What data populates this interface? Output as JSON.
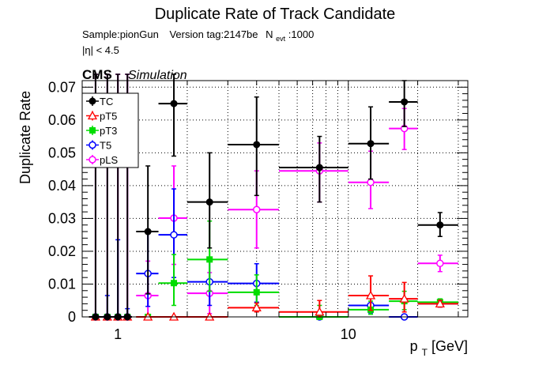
{
  "chart_data": {
    "type": "scatter",
    "title": "Duplicate Rate of Track Candidate",
    "subtitle_sample": "Sample:pionGun",
    "subtitle_version": "Version tag:2147be",
    "subtitle_nevt_prefix": "N",
    "subtitle_nevt_sub": "evt",
    "subtitle_nevt_value": ":1000",
    "eta_cut": "|η| < 4.5",
    "cms_label": "CMS",
    "sim_label": "Simulation",
    "xlabel_main": "p",
    "xlabel_sub": "T",
    "xlabel_unit": " [GeV]",
    "ylabel": "Duplicate Rate",
    "x_scale": "log",
    "xlim": [
      0.7,
      33
    ],
    "ylim": [
      0,
      0.072
    ],
    "grid": true,
    "legend_position": "top-left",
    "x_ticks": [
      {
        "v": 1,
        "label": "1"
      },
      {
        "v": 10,
        "label": "10"
      }
    ],
    "y_ticks": [
      {
        "v": 0,
        "label": "0"
      },
      {
        "v": 0.01,
        "label": "0.01"
      },
      {
        "v": 0.02,
        "label": "0.02"
      },
      {
        "v": 0.03,
        "label": "0.03"
      },
      {
        "v": 0.04,
        "label": "0.04"
      },
      {
        "v": 0.05,
        "label": "0.05"
      },
      {
        "v": 0.06,
        "label": "0.06"
      },
      {
        "v": 0.07,
        "label": "0.07"
      }
    ],
    "series": [
      {
        "name": "TC",
        "color": "#000000",
        "marker": "filled-circle",
        "points": [
          {
            "x": 0.8,
            "xlo": 0.75,
            "xhi": 0.85,
            "y": 0,
            "ylo": 0,
            "yhi": 0.075
          },
          {
            "x": 0.9,
            "xlo": 0.85,
            "xhi": 0.95,
            "y": 0,
            "ylo": 0,
            "yhi": 0.075
          },
          {
            "x": 1.0,
            "xlo": 0.95,
            "xhi": 1.05,
            "y": 0,
            "ylo": 0,
            "yhi": 0.075
          },
          {
            "x": 1.1,
            "xlo": 1.05,
            "xhi": 1.15,
            "y": 0,
            "ylo": 0,
            "yhi": 0.075
          },
          {
            "x": 1.35,
            "xlo": 1.2,
            "xhi": 1.5,
            "y": 0.026,
            "ylo": 0.007,
            "yhi": 0.046
          },
          {
            "x": 1.75,
            "xlo": 1.5,
            "xhi": 2.0,
            "y": 0.065,
            "ylo": 0.049,
            "yhi": 0.075
          },
          {
            "x": 2.5,
            "xlo": 2.0,
            "xhi": 3.0,
            "y": 0.035,
            "ylo": 0.021,
            "yhi": 0.05
          },
          {
            "x": 4.0,
            "xlo": 3.0,
            "xhi": 5.0,
            "y": 0.0525,
            "ylo": 0.037,
            "yhi": 0.067
          },
          {
            "x": 7.5,
            "xlo": 5.0,
            "xhi": 10.0,
            "y": 0.0455,
            "ylo": 0.035,
            "yhi": 0.055
          },
          {
            "x": 12.5,
            "xlo": 10.0,
            "xhi": 15.0,
            "y": 0.0528,
            "ylo": 0.042,
            "yhi": 0.064
          },
          {
            "x": 17.5,
            "xlo": 15.0,
            "xhi": 20.0,
            "y": 0.0655,
            "ylo": 0.058,
            "yhi": 0.072
          },
          {
            "x": 25.0,
            "xlo": 20.0,
            "xhi": 30.0,
            "y": 0.028,
            "ylo": 0.0245,
            "yhi": 0.0318
          }
        ]
      },
      {
        "name": "pT5",
        "color": "#ff0000",
        "marker": "open-triangle",
        "points": [
          {
            "x": 0.8,
            "xlo": 0.75,
            "xhi": 0.85,
            "y": 0,
            "ylo": 0,
            "yhi": 0
          },
          {
            "x": 0.9,
            "xlo": 0.85,
            "xhi": 0.95,
            "y": 0,
            "ylo": 0,
            "yhi": 0
          },
          {
            "x": 1.0,
            "xlo": 0.95,
            "xhi": 1.05,
            "y": 0,
            "ylo": 0,
            "yhi": 0
          },
          {
            "x": 1.1,
            "xlo": 1.05,
            "xhi": 1.15,
            "y": 0,
            "ylo": 0,
            "yhi": 0
          },
          {
            "x": 1.35,
            "xlo": 1.2,
            "xhi": 1.5,
            "y": 0,
            "ylo": 0,
            "yhi": 0
          },
          {
            "x": 1.75,
            "xlo": 1.5,
            "xhi": 2.0,
            "y": 0,
            "ylo": 0,
            "yhi": 0
          },
          {
            "x": 2.5,
            "xlo": 2.0,
            "xhi": 3.0,
            "y": 0,
            "ylo": 0,
            "yhi": 0
          },
          {
            "x": 4.0,
            "xlo": 3.0,
            "xhi": 5.0,
            "y": 0.0028,
            "ylo": 0.0015,
            "yhi": 0.0042
          },
          {
            "x": 7.5,
            "xlo": 5.0,
            "xhi": 10.0,
            "y": 0.0015,
            "ylo": 0,
            "yhi": 0.005
          },
          {
            "x": 12.5,
            "xlo": 10.0,
            "xhi": 15.0,
            "y": 0.0065,
            "ylo": 0.002,
            "yhi": 0.0125
          },
          {
            "x": 17.5,
            "xlo": 15.0,
            "xhi": 20.0,
            "y": 0.0055,
            "ylo": 0.0015,
            "yhi": 0.0105
          },
          {
            "x": 25.0,
            "xlo": 20.0,
            "xhi": 30.0,
            "y": 0.004,
            "ylo": 0.003,
            "yhi": 0.005
          }
        ]
      },
      {
        "name": "pT3",
        "color": "#00dd00",
        "marker": "filled-square",
        "points": [
          {
            "x": 0.8,
            "xlo": 0.75,
            "xhi": 0.85,
            "y": 0,
            "ylo": 0,
            "yhi": 0
          },
          {
            "x": 0.9,
            "xlo": 0.85,
            "xhi": 0.95,
            "y": 0,
            "ylo": 0,
            "yhi": 0
          },
          {
            "x": 1.0,
            "xlo": 0.95,
            "xhi": 1.05,
            "y": 0,
            "ylo": 0,
            "yhi": 0
          },
          {
            "x": 1.1,
            "xlo": 1.05,
            "xhi": 1.15,
            "y": 0,
            "ylo": 0,
            "yhi": 0
          },
          {
            "x": 1.35,
            "xlo": 1.2,
            "xhi": 1.5,
            "y": 0,
            "ylo": 0,
            "yhi": 0
          },
          {
            "x": 1.75,
            "xlo": 1.5,
            "xhi": 2.0,
            "y": 0.0103,
            "ylo": 0.0035,
            "yhi": 0.019
          },
          {
            "x": 2.5,
            "xlo": 2.0,
            "xhi": 3.0,
            "y": 0.0175,
            "ylo": 0.0078,
            "yhi": 0.0292
          },
          {
            "x": 4.0,
            "xlo": 3.0,
            "xhi": 5.0,
            "y": 0.0075,
            "ylo": 0.0035,
            "yhi": 0.0128
          },
          {
            "x": 7.5,
            "xlo": 5.0,
            "xhi": 10.0,
            "y": 0,
            "ylo": 0,
            "yhi": 0.0035
          },
          {
            "x": 12.5,
            "xlo": 10.0,
            "xhi": 15.0,
            "y": 0.0022,
            "ylo": 0.0008,
            "yhi": 0.0048
          },
          {
            "x": 17.5,
            "xlo": 15.0,
            "xhi": 20.0,
            "y": 0.0048,
            "ylo": 0.0022,
            "yhi": 0.0078
          },
          {
            "x": 25.0,
            "xlo": 20.0,
            "xhi": 30.0,
            "y": 0.0045,
            "ylo": 0.0035,
            "yhi": 0.0055
          }
        ]
      },
      {
        "name": "T5",
        "color": "#0000ff",
        "marker": "open-circle",
        "points": [
          {
            "x": 0.8,
            "xlo": 0.75,
            "xhi": 0.85,
            "y": 0,
            "ylo": 0,
            "yhi": 0
          },
          {
            "x": 0.9,
            "xlo": 0.85,
            "xhi": 0.95,
            "y": 0,
            "ylo": 0,
            "yhi": 0.0065
          },
          {
            "x": 1.0,
            "xlo": 0.95,
            "xhi": 1.05,
            "y": 0,
            "ylo": 0,
            "yhi": 0.0235
          },
          {
            "x": 1.1,
            "xlo": 1.05,
            "xhi": 1.15,
            "y": 0,
            "ylo": 0,
            "yhi": 0.0025
          },
          {
            "x": 1.35,
            "xlo": 1.2,
            "xhi": 1.5,
            "y": 0.0132,
            "ylo": 0.0032,
            "yhi": 0.0265
          },
          {
            "x": 1.75,
            "xlo": 1.5,
            "xhi": 2.0,
            "y": 0.025,
            "ylo": 0.012,
            "yhi": 0.039
          },
          {
            "x": 2.5,
            "xlo": 2.0,
            "xhi": 3.0,
            "y": 0.0107,
            "ylo": 0.0035,
            "yhi": 0.0182
          },
          {
            "x": 4.0,
            "xlo": 3.0,
            "xhi": 5.0,
            "y": 0.0102,
            "ylo": 0.0045,
            "yhi": 0.0162
          },
          {
            "x": 7.5,
            "xlo": 5.0,
            "xhi": 10.0,
            "y": 0,
            "ylo": 0,
            "yhi": 0
          },
          {
            "x": 12.5,
            "xlo": 10.0,
            "xhi": 15.0,
            "y": 0.0035,
            "ylo": 0.0012,
            "yhi": 0.0065
          },
          {
            "x": 17.5,
            "xlo": 15.0,
            "xhi": 20.0,
            "y": 0,
            "ylo": 0,
            "yhi": 0
          },
          {
            "x": 25.0,
            "xlo": 20.0,
            "xhi": 30.0,
            "y": 0.004,
            "ylo": 0.003,
            "yhi": 0.005
          }
        ]
      },
      {
        "name": "pLS",
        "color": "#ff00ff",
        "marker": "open-circle",
        "points": [
          {
            "x": 0.8,
            "xlo": 0.75,
            "xhi": 0.85,
            "y": 0,
            "ylo": 0,
            "yhi": 0.075
          },
          {
            "x": 0.9,
            "xlo": 0.85,
            "xhi": 0.95,
            "y": 0,
            "ylo": 0,
            "yhi": 0.075
          },
          {
            "x": 1.0,
            "xlo": 0.95,
            "xhi": 1.05,
            "y": 0,
            "ylo": 0,
            "yhi": 0.075
          },
          {
            "x": 1.1,
            "xlo": 1.05,
            "xhi": 1.15,
            "y": 0,
            "ylo": 0,
            "yhi": 0.075
          },
          {
            "x": 1.35,
            "xlo": 1.2,
            "xhi": 1.5,
            "y": 0.0065,
            "ylo": 0,
            "yhi": 0.017
          },
          {
            "x": 1.75,
            "xlo": 1.5,
            "xhi": 2.0,
            "y": 0.0301,
            "ylo": 0.016,
            "yhi": 0.046
          },
          {
            "x": 2.5,
            "xlo": 2.0,
            "xhi": 3.0,
            "y": 0.0072,
            "ylo": 0.001,
            "yhi": 0.0135
          },
          {
            "x": 4.0,
            "xlo": 3.0,
            "xhi": 5.0,
            "y": 0.0327,
            "ylo": 0.021,
            "yhi": 0.0445
          },
          {
            "x": 7.5,
            "xlo": 5.0,
            "xhi": 10.0,
            "y": 0.0445,
            "ylo": 0.035,
            "yhi": 0.053
          },
          {
            "x": 12.5,
            "xlo": 10.0,
            "xhi": 15.0,
            "y": 0.041,
            "ylo": 0.033,
            "yhi": 0.0505
          },
          {
            "x": 17.5,
            "xlo": 15.0,
            "xhi": 20.0,
            "y": 0.0574,
            "ylo": 0.051,
            "yhi": 0.0635
          },
          {
            "x": 25.0,
            "xlo": 20.0,
            "xhi": 30.0,
            "y": 0.0163,
            "ylo": 0.0138,
            "yhi": 0.0188
          }
        ]
      }
    ]
  }
}
